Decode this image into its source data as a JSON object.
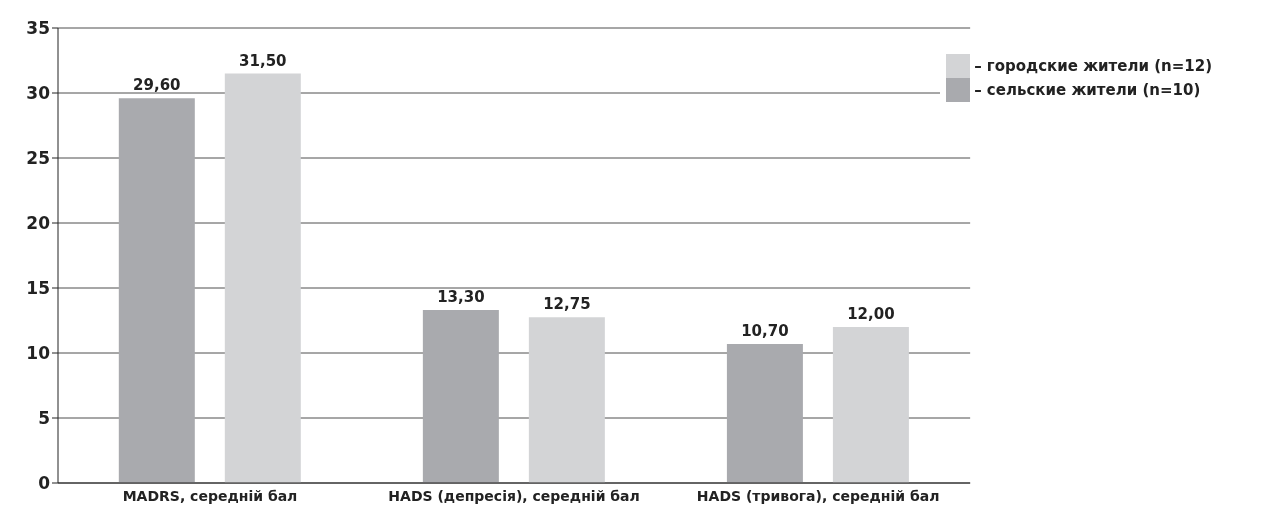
{
  "chart_data": {
    "type": "bar",
    "categories": [
      "MADRS, середній бал",
      "HADS (депресія), середній бал",
      "HADS (тривога), середній бал"
    ],
    "series": [
      {
        "name": "– сельские жители (n=10)",
        "color": "#a9aaae",
        "values": [
          29.6,
          13.3,
          10.7
        ],
        "value_labels": [
          "29,60",
          "13,30",
          "10,70"
        ]
      },
      {
        "name": "– городские жители (n=12)",
        "color": "#d3d4d6",
        "values": [
          31.5,
          12.75,
          12.0
        ],
        "value_labels": [
          "31,50",
          "12,75",
          "12,00"
        ]
      }
    ],
    "ylim": [
      0,
      35
    ],
    "yticks": [
      0,
      5,
      10,
      15,
      20,
      25,
      30,
      35
    ],
    "grid": "y",
    "legend": "top right"
  }
}
